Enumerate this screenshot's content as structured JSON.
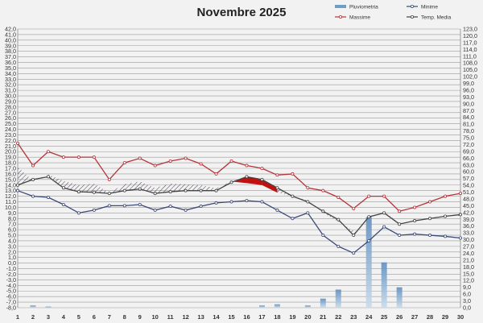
{
  "chart_data": {
    "type": "line",
    "title": "Novembre 2025",
    "x": [
      1,
      2,
      3,
      4,
      5,
      6,
      7,
      8,
      9,
      10,
      11,
      12,
      13,
      14,
      15,
      16,
      17,
      18,
      19,
      20,
      21,
      22,
      23,
      24,
      25,
      26,
      27,
      28,
      29,
      30
    ],
    "y_left": {
      "min": -8,
      "max": 42,
      "step": 1
    },
    "y_right": {
      "min": 0,
      "max": 123,
      "step": 3
    },
    "series": [
      {
        "name": "Massime",
        "axis": "left",
        "color": "#b5333a",
        "values": [
          21.5,
          17.5,
          20,
          19,
          19,
          19,
          15,
          18,
          18.8,
          17.5,
          18.3,
          18.8,
          17.8,
          16,
          18.3,
          17.5,
          17,
          15.8,
          16,
          13.5,
          13,
          11.8,
          9.8,
          12,
          12,
          9.3,
          10,
          11,
          12,
          12.5
        ]
      },
      {
        "name": "Minime",
        "axis": "left",
        "color": "#3b4a78",
        "values": [
          13,
          12,
          11.8,
          10.5,
          9,
          9.5,
          10.3,
          10.3,
          10.5,
          9.5,
          10.2,
          9.5,
          10.2,
          10.8,
          11,
          11.2,
          11,
          9.5,
          8,
          9,
          5,
          3,
          1.8,
          4,
          6.5,
          5,
          5.2,
          5,
          4.8,
          4.5
        ]
      },
      {
        "name": "Temp. Media",
        "axis": "left",
        "color": "#444444",
        "values": [
          14,
          15,
          15.5,
          13.5,
          12.8,
          12.7,
          12.5,
          13,
          13.3,
          12.5,
          12.8,
          13,
          13,
          13,
          14.5,
          15.5,
          15,
          13.5,
          12,
          11,
          9.3,
          7.8,
          5,
          8.3,
          9,
          7,
          7.6,
          8,
          8.4,
          8.7
        ]
      },
      {
        "name": "Pluviometria",
        "axis": "right",
        "color": "#6f9dc8",
        "values": [
          0,
          1,
          0.5,
          0,
          0,
          0,
          0,
          0,
          0,
          0,
          0,
          0,
          0,
          0,
          0,
          0,
          1,
          1.5,
          0,
          1,
          4,
          8,
          0,
          40,
          20,
          9,
          0,
          0,
          0,
          0
        ]
      }
    ]
  }
}
